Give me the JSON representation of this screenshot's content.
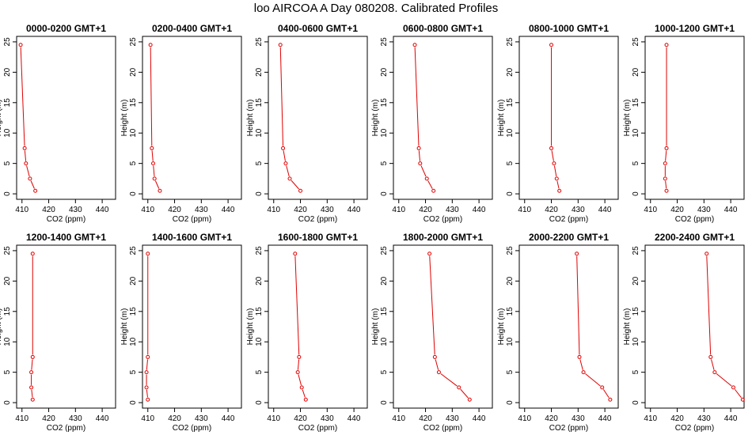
{
  "figure": {
    "title": "loo AIRCOA A  Day 080208. Calibrated Profiles"
  },
  "colors": {
    "profile": "#e00000",
    "axes": "#000000",
    "background": "#ffffff"
  },
  "chart_data": [
    {
      "type": "line",
      "title": "0000-0200 GMT+1",
      "xlabel": "CO2 (ppm)",
      "ylabel": "Height (m)",
      "xlim": [
        408,
        445
      ],
      "ylim": [
        0,
        25
      ],
      "xticks": [
        410,
        420,
        430,
        440
      ],
      "yticks": [
        0,
        5,
        10,
        15,
        20,
        25
      ],
      "x": [
        415.0,
        413.0,
        411.5,
        411.0,
        409.5
      ],
      "y": [
        0.5,
        2.5,
        5.0,
        7.5,
        24.5
      ]
    },
    {
      "type": "line",
      "title": "0200-0400 GMT+1",
      "xlabel": "CO2 (ppm)",
      "ylabel": "Height (m)",
      "xlim": [
        408,
        445
      ],
      "ylim": [
        0,
        25
      ],
      "xticks": [
        410,
        420,
        430,
        440
      ],
      "yticks": [
        0,
        5,
        10,
        15,
        20,
        25
      ],
      "x": [
        414.5,
        412.5,
        412.0,
        411.5,
        411.0
      ],
      "y": [
        0.5,
        2.5,
        5.0,
        7.5,
        24.5
      ]
    },
    {
      "type": "line",
      "title": "0400-0600 GMT+1",
      "xlabel": "CO2 (ppm)",
      "ylabel": "Height (m)",
      "xlim": [
        408,
        445
      ],
      "ylim": [
        0,
        25
      ],
      "xticks": [
        410,
        420,
        430,
        440
      ],
      "yticks": [
        0,
        5,
        10,
        15,
        20,
        25
      ],
      "x": [
        420.0,
        416.0,
        414.5,
        413.5,
        412.5
      ],
      "y": [
        0.5,
        2.5,
        5.0,
        7.5,
        24.5
      ]
    },
    {
      "type": "line",
      "title": "0600-0800 GMT+1",
      "xlabel": "CO2 (ppm)",
      "ylabel": "Height (m)",
      "xlim": [
        408,
        445
      ],
      "ylim": [
        0,
        25
      ],
      "xticks": [
        410,
        420,
        430,
        440
      ],
      "yticks": [
        0,
        5,
        10,
        15,
        20,
        25
      ],
      "x": [
        423.0,
        420.5,
        418.0,
        417.5,
        416.0
      ],
      "y": [
        0.5,
        2.5,
        5.0,
        7.5,
        24.5
      ]
    },
    {
      "type": "line",
      "title": "0800-1000 GMT+1",
      "xlabel": "CO2 (ppm)",
      "ylabel": "Height (m)",
      "xlim": [
        408,
        445
      ],
      "ylim": [
        0,
        25
      ],
      "xticks": [
        410,
        420,
        430,
        440
      ],
      "yticks": [
        0,
        5,
        10,
        15,
        20,
        25
      ],
      "x": [
        423.0,
        422.0,
        421.0,
        420.0,
        420.0
      ],
      "y": [
        0.5,
        2.5,
        5.0,
        7.5,
        24.5
      ]
    },
    {
      "type": "line",
      "title": "1000-1200 GMT+1",
      "xlabel": "CO2 (ppm)",
      "ylabel": "Height (m)",
      "xlim": [
        408,
        445
      ],
      "ylim": [
        0,
        25
      ],
      "xticks": [
        410,
        420,
        430,
        440
      ],
      "yticks": [
        0,
        5,
        10,
        15,
        20,
        25
      ],
      "x": [
        416.0,
        415.5,
        415.5,
        416.0,
        416.0
      ],
      "y": [
        0.5,
        2.5,
        5.0,
        7.5,
        24.5
      ]
    },
    {
      "type": "line",
      "title": "1200-1400 GMT+1",
      "xlabel": "CO2 (ppm)",
      "ylabel": "Height (m)",
      "xlim": [
        408,
        445
      ],
      "ylim": [
        0,
        25
      ],
      "xticks": [
        410,
        420,
        430,
        440
      ],
      "yticks": [
        0,
        5,
        10,
        15,
        20,
        25
      ],
      "x": [
        414.0,
        413.5,
        413.5,
        414.0,
        414.0
      ],
      "y": [
        0.5,
        2.5,
        5.0,
        7.5,
        24.5
      ]
    },
    {
      "type": "line",
      "title": "1400-1600 GMT+1",
      "xlabel": "CO2 (ppm)",
      "ylabel": "Height (m)",
      "xlim": [
        408,
        445
      ],
      "ylim": [
        0,
        25
      ],
      "xticks": [
        410,
        420,
        430,
        440
      ],
      "yticks": [
        0,
        5,
        10,
        15,
        20,
        25
      ],
      "x": [
        410.0,
        409.5,
        409.5,
        410.0,
        410.0
      ],
      "y": [
        0.5,
        2.5,
        5.0,
        7.5,
        24.5
      ]
    },
    {
      "type": "line",
      "title": "1600-1800 GMT+1",
      "xlabel": "CO2 (ppm)",
      "ylabel": "Height (m)",
      "xlim": [
        408,
        445
      ],
      "ylim": [
        0,
        25
      ],
      "xticks": [
        410,
        420,
        430,
        440
      ],
      "yticks": [
        0,
        5,
        10,
        15,
        20,
        25
      ],
      "x": [
        422.0,
        420.5,
        419.0,
        419.5,
        418.0
      ],
      "y": [
        0.5,
        2.5,
        5.0,
        7.5,
        24.5
      ]
    },
    {
      "type": "line",
      "title": "1800-2000 GMT+1",
      "xlabel": "CO2 (ppm)",
      "ylabel": "Height (m)",
      "xlim": [
        408,
        445
      ],
      "ylim": [
        0,
        25
      ],
      "xticks": [
        410,
        420,
        430,
        440
      ],
      "yticks": [
        0,
        5,
        10,
        15,
        20,
        25
      ],
      "x": [
        436.5,
        432.5,
        425.0,
        423.5,
        421.5
      ],
      "y": [
        0.5,
        2.5,
        5.0,
        7.5,
        24.5
      ]
    },
    {
      "type": "line",
      "title": "2000-2200 GMT+1",
      "xlabel": "CO2 (ppm)",
      "ylabel": "Height (m)",
      "xlim": [
        408,
        445
      ],
      "ylim": [
        0,
        25
      ],
      "xticks": [
        410,
        420,
        430,
        440
      ],
      "yticks": [
        0,
        5,
        10,
        15,
        20,
        25
      ],
      "x": [
        442.0,
        439.0,
        432.0,
        430.5,
        429.5
      ],
      "y": [
        0.5,
        2.5,
        5.0,
        7.5,
        24.5
      ]
    },
    {
      "type": "line",
      "title": "2200-2400 GMT+1",
      "xlabel": "CO2 (ppm)",
      "ylabel": "Height (m)",
      "xlim": [
        408,
        445
      ],
      "ylim": [
        0,
        25
      ],
      "xticks": [
        410,
        420,
        430,
        440
      ],
      "yticks": [
        0,
        5,
        10,
        15,
        20,
        25
      ],
      "x": [
        444.5,
        441.0,
        434.0,
        432.5,
        431.0
      ],
      "y": [
        0.5,
        2.5,
        5.0,
        7.5,
        24.5
      ]
    }
  ]
}
